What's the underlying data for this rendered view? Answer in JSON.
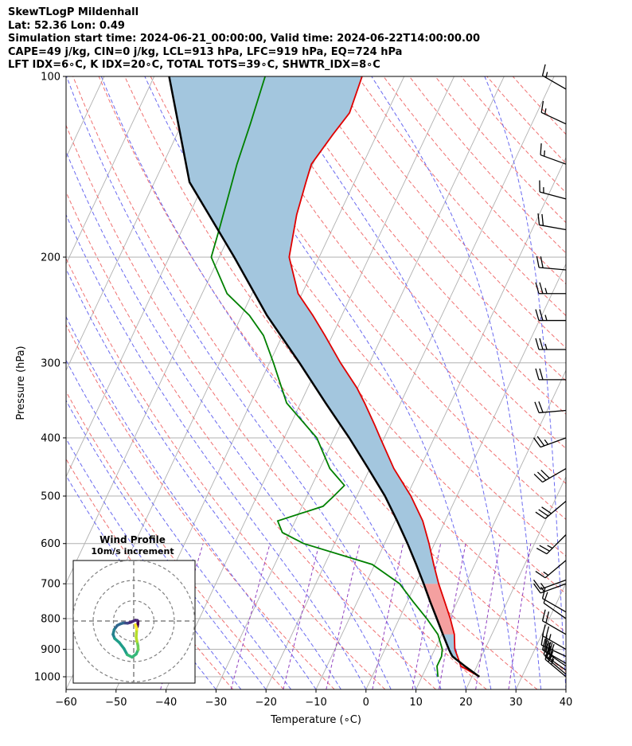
{
  "header": {
    "line1": "SkewTLogP Mildenhall",
    "line2": "Lat: 52.36   Lon: 0.49",
    "line3": "Simulation start time: 2024-06-21_00:00:00, Valid time: 2024-06-22T14:00:00.00",
    "line4": "CAPE=49 j/kg, CIN=0 j/kg, LCL=913 hPa, LFC=919 hPa, EQ=724 hPa",
    "line5": "LFT IDX=6∘C, K IDX=20∘C, TOTAL TOTS=39∘C, SHWTR_IDX=8∘C"
  },
  "colors": {
    "temperature": "#e00000",
    "dewpoint": "#008000",
    "parcel": "#000000",
    "cape_fill": "#a3c6de",
    "cin_fill": "#f4a0a0",
    "dry_adiabat": "#f07070",
    "moist_adiabat": "#6a6af0",
    "mixing_ratio": "#9040c0",
    "isotherm": "#b0b0b0",
    "isobar": "#b0b0b0",
    "zero_isotherm": "#4040ff"
  },
  "chart_data": [
    {
      "type": "line",
      "chart": "skew-t log-p",
      "xlabel": "Temperature (∘C)",
      "ylabel": "Pressure (hPa)",
      "xlim": [
        -60,
        40
      ],
      "ylim": [
        1050,
        100
      ],
      "y_scale": "log",
      "xticks": [
        -60,
        -50,
        -40,
        -30,
        -20,
        -10,
        0,
        10,
        20,
        30,
        40
      ],
      "xtick_labels": [
        "−60",
        "−50",
        "−40",
        "−30",
        "−20",
        "−10",
        "0",
        "10",
        "20",
        "30",
        "40"
      ],
      "yticks": [
        1000,
        900,
        800,
        700,
        600,
        500,
        400,
        300,
        200,
        100
      ],
      "ytick_labels": [
        "1000",
        "900",
        "800",
        "700",
        "600",
        "500",
        "400",
        "300",
        "200",
        "100"
      ],
      "grid": true,
      "series": [
        {
          "id": "temperature",
          "pressure": [
            1000,
            960,
            925,
            900,
            850,
            800,
            750,
            700,
            650,
            600,
            550,
            500,
            450,
            400,
            380,
            350,
            330,
            300,
            270,
            250,
            230,
            200,
            170,
            150,
            140,
            125,
            115,
            100
          ],
          "temperature": [
            21.5,
            16.8,
            15.2,
            14.0,
            12.5,
            10.2,
            7.5,
            4.6,
            1.8,
            -1.1,
            -4.5,
            -9.2,
            -15.2,
            -20.8,
            -23.2,
            -27.2,
            -30.2,
            -35.8,
            -41.5,
            -45.8,
            -50.8,
            -56.0,
            -58.5,
            -59.7,
            -60.3,
            -58.8,
            -57.5,
            -58.4
          ]
        },
        {
          "id": "dewpoint",
          "pressure": [
            1000,
            960,
            925,
            900,
            850,
            800,
            750,
            700,
            650,
            600,
            575,
            550,
            520,
            500,
            480,
            450,
            400,
            350,
            300,
            270,
            250,
            230,
            200,
            180,
            160,
            140,
            120,
            100
          ],
          "dewpoint": [
            13.2,
            12.0,
            12.0,
            11.5,
            9.2,
            5.5,
            1.2,
            -3.2,
            -10.5,
            -26.2,
            -31.5,
            -33.5,
            -25.8,
            -24.6,
            -23.5,
            -28.0,
            -33.5,
            -42.8,
            -49.2,
            -53.8,
            -58.5,
            -65.0,
            -71.6,
            -72.6,
            -73.8,
            -75.2,
            -76.3,
            -77.8
          ]
        },
        {
          "id": "parcel",
          "pressure": [
            1000,
            960,
            925,
            913,
            900,
            850,
            800,
            750,
            700,
            650,
            600,
            550,
            500,
            450,
            400,
            350,
            300,
            250,
            200,
            150,
            100
          ],
          "temperature": [
            21.5,
            17.6,
            14.2,
            13.5,
            12.8,
            10.2,
            7.5,
            4.6,
            1.6,
            -1.7,
            -5.4,
            -9.6,
            -14.4,
            -20.3,
            -27.0,
            -35.0,
            -44.0,
            -55.0,
            -67.0,
            -83.0,
            -97.0
          ]
        }
      ],
      "cape_fill": "shaded blue between parcel and temperature from the LFC to the top",
      "cin_fill": "shaded red between parcel and temperature near the LCL"
    },
    {
      "type": "line",
      "chart": "hodograph",
      "title": "Wind Profile",
      "subtitle": "10m/s increment",
      "rings_ms": [
        10,
        20,
        30
      ],
      "u": [
        1.8,
        2.0,
        2.1,
        1.8,
        0.8,
        -1.4,
        -3.1,
        -4.3,
        -5.2,
        -6.5,
        -8.1,
        -9.6,
        -10.2,
        -9.4,
        -7.1,
        -4.8,
        -3.2,
        -0.8,
        1.2,
        2.2,
        2.1,
        1.6,
        1.2,
        1.3,
        1.5,
        1.2,
        0.8
      ],
      "v": [
        -2.8,
        -1.6,
        -0.2,
        0.3,
        0.4,
        -0.6,
        -1.1,
        -1.0,
        -1.0,
        -1.4,
        -2.2,
        -4.2,
        -6.6,
        -8.6,
        -10.6,
        -13.6,
        -16.6,
        -17.8,
        -16.3,
        -14.1,
        -12.2,
        -10.1,
        -8.0,
        -6.5,
        -4.0,
        -2.8,
        -1.8
      ]
    }
  ],
  "wind_barbs": {
    "pressure": [
      1000,
      990,
      975,
      960,
      950,
      925,
      900,
      850,
      800,
      780,
      700,
      690,
      640,
      580,
      510,
      450,
      400,
      360,
      320,
      285,
      255,
      230,
      210,
      180,
      160,
      140,
      120,
      105
    ],
    "speed_kt": [
      25,
      25,
      28,
      30,
      30,
      28,
      25,
      20,
      10,
      10,
      15,
      15,
      15,
      25,
      30,
      30,
      25,
      20,
      20,
      25,
      25,
      25,
      20,
      20,
      15,
      15,
      15,
      15
    ],
    "direction_deg": [
      310,
      310,
      305,
      305,
      300,
      295,
      300,
      300,
      305,
      300,
      250,
      250,
      230,
      225,
      230,
      240,
      250,
      265,
      270,
      270,
      270,
      270,
      275,
      280,
      285,
      290,
      295,
      300
    ]
  }
}
